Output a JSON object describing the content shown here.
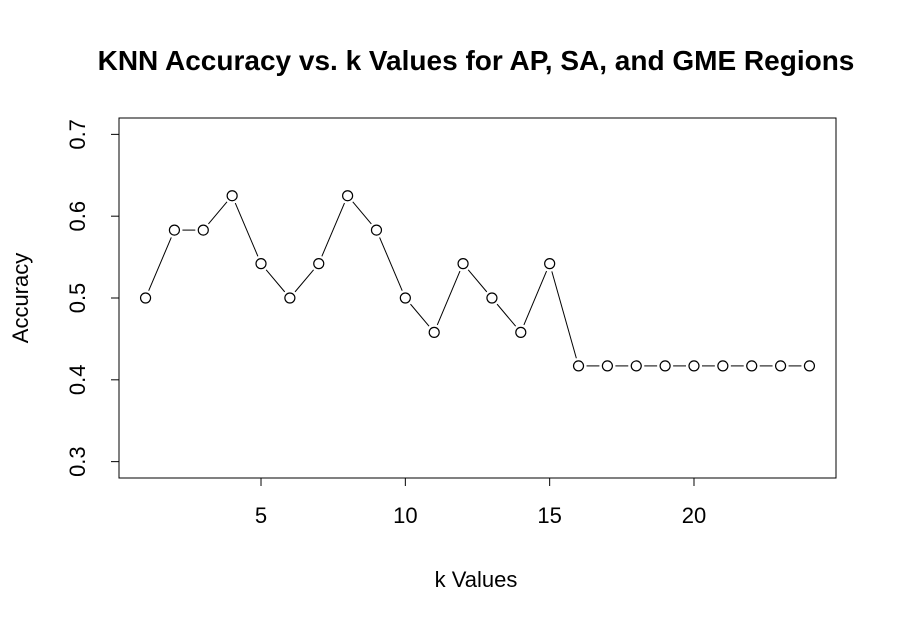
{
  "chart_data": {
    "type": "line",
    "title": "KNN Accuracy vs. k Values for AP, SA, and GME Regions",
    "xlabel": "k Values",
    "ylabel": "Accuracy",
    "xlim": [
      0.08,
      24.92
    ],
    "ylim": [
      0.28,
      0.72
    ],
    "x_ticks": [
      5,
      10,
      15,
      20
    ],
    "y_ticks": [
      0.3,
      0.4,
      0.5,
      0.6,
      0.7
    ],
    "grid": false,
    "legend": "none",
    "marker": "open-circle",
    "line_color": "#000000",
    "series": [
      {
        "x": [
          1,
          2,
          3,
          4,
          5,
          6,
          7,
          8,
          9,
          10,
          11,
          12,
          13,
          14,
          15,
          16,
          17,
          18,
          19,
          20,
          21,
          22,
          23,
          24
        ],
        "values": [
          0.5,
          0.583,
          0.583,
          0.625,
          0.542,
          0.5,
          0.542,
          0.625,
          0.583,
          0.5,
          0.458,
          0.542,
          0.5,
          0.458,
          0.542,
          0.417,
          0.417,
          0.417,
          0.417,
          0.417,
          0.417,
          0.417,
          0.417,
          0.417
        ]
      }
    ]
  }
}
